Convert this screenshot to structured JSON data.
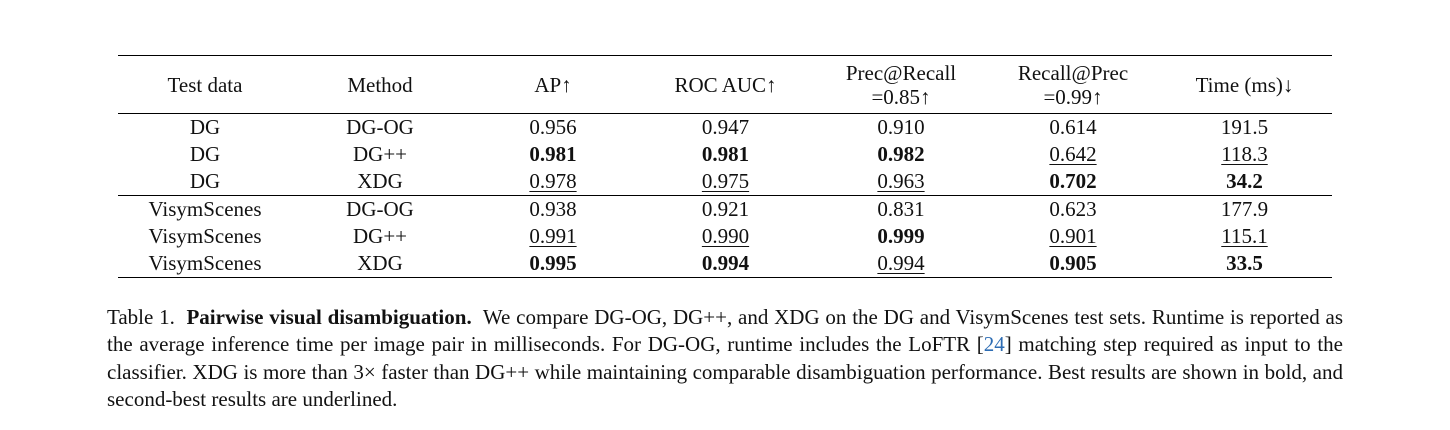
{
  "table": {
    "columns": [
      [
        "Test data"
      ],
      [
        "Method"
      ],
      [
        "AP↑"
      ],
      [
        "ROC AUC↑"
      ],
      [
        "Prec@Recall",
        "=0.85↑"
      ],
      [
        "Recall@Prec",
        "=0.99↑"
      ],
      [
        "Time (ms)↓"
      ]
    ],
    "groups": [
      {
        "rows": [
          {
            "cells": [
              {
                "v": "DG"
              },
              {
                "v": "DG-OG"
              },
              {
                "v": "0.956"
              },
              {
                "v": "0.947"
              },
              {
                "v": "0.910"
              },
              {
                "v": "0.614"
              },
              {
                "v": "191.5"
              }
            ]
          },
          {
            "cells": [
              {
                "v": "DG"
              },
              {
                "v": "DG++"
              },
              {
                "v": "0.981",
                "s": "best"
              },
              {
                "v": "0.981",
                "s": "best"
              },
              {
                "v": "0.982",
                "s": "best"
              },
              {
                "v": "0.642",
                "s": "second"
              },
              {
                "v": "118.3",
                "s": "second"
              }
            ]
          },
          {
            "cells": [
              {
                "v": "DG"
              },
              {
                "v": "XDG"
              },
              {
                "v": "0.978",
                "s": "second"
              },
              {
                "v": "0.975",
                "s": "second"
              },
              {
                "v": "0.963",
                "s": "second"
              },
              {
                "v": "0.702",
                "s": "best"
              },
              {
                "v": "34.2",
                "s": "best"
              }
            ]
          }
        ]
      },
      {
        "rows": [
          {
            "cells": [
              {
                "v": "VisymScenes"
              },
              {
                "v": "DG-OG"
              },
              {
                "v": "0.938"
              },
              {
                "v": "0.921"
              },
              {
                "v": "0.831"
              },
              {
                "v": "0.623"
              },
              {
                "v": "177.9"
              }
            ]
          },
          {
            "cells": [
              {
                "v": "VisymScenes"
              },
              {
                "v": "DG++"
              },
              {
                "v": "0.991",
                "s": "second"
              },
              {
                "v": "0.990",
                "s": "second"
              },
              {
                "v": "0.999",
                "s": "best"
              },
              {
                "v": "0.901",
                "s": "second"
              },
              {
                "v": "115.1",
                "s": "second"
              }
            ]
          },
          {
            "cells": [
              {
                "v": "VisymScenes"
              },
              {
                "v": "XDG"
              },
              {
                "v": "0.995",
                "s": "best"
              },
              {
                "v": "0.994",
                "s": "best"
              },
              {
                "v": "0.994",
                "s": "second"
              },
              {
                "v": "0.905",
                "s": "best"
              },
              {
                "v": "33.5",
                "s": "best"
              }
            ]
          }
        ]
      }
    ]
  },
  "caption": {
    "label": "Table 1.",
    "title": "Pairwise visual disambiguation.",
    "text_a": "We compare DG-OG, DG++, and XDG on the DG and VisymScenes test sets. Runtime is reported as the average inference time per image pair in milliseconds. For DG-OG, runtime includes the LoFTR [",
    "cite": "24",
    "text_b": "] matching step required as input to the classifier. XDG is more than 3× faster than DG++ while maintaining comparable disambiguation performance. Best results are shown in bold, and second-best results are underlined."
  }
}
